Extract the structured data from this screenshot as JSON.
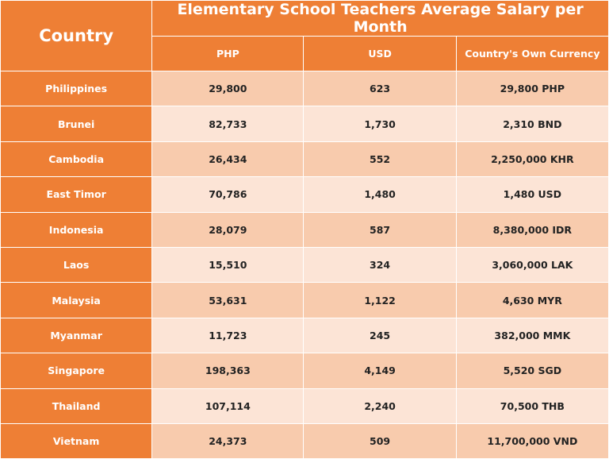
{
  "header": {
    "country_label": "Country",
    "title": "Elementary School Teachers Average Salary per Month",
    "columns": [
      "PHP",
      "USD",
      "Country's Own Currency"
    ]
  },
  "rows": [
    {
      "country": "Philippines",
      "php": "29,800",
      "usd": "623",
      "own": "29,800  PHP"
    },
    {
      "country": "Brunei",
      "php": "82,733",
      "usd": "1,730",
      "own": "2,310  BND"
    },
    {
      "country": "Cambodia",
      "php": "26,434",
      "usd": "552",
      "own": "2,250,000  KHR"
    },
    {
      "country": "East Timor",
      "php": "70,786",
      "usd": "1,480",
      "own": "1,480  USD"
    },
    {
      "country": "Indonesia",
      "php": "28,079",
      "usd": "587",
      "own": "8,380,000 IDR"
    },
    {
      "country": "Laos",
      "php": "15,510",
      "usd": "324",
      "own": "3,060,000  LAK"
    },
    {
      "country": "Malaysia",
      "php": "53,631",
      "usd": "1,122",
      "own": "4,630  MYR"
    },
    {
      "country": "Myanmar",
      "php": "11,723",
      "usd": "245",
      "own": "382,000 MMK"
    },
    {
      "country": "Singapore",
      "php": "198,363",
      "usd": "4,149",
      "own": "5,520  SGD"
    },
    {
      "country": "Thailand",
      "php": "107,114",
      "usd": "2,240",
      "own": "70,500  THB"
    },
    {
      "country": "Vietnam",
      "php": "24,373",
      "usd": "509",
      "own": "11,700,000 VND"
    }
  ],
  "colors": {
    "header_orange": "#ee7f35",
    "row_dark": "#f8cbad",
    "row_light": "#fce4d6"
  }
}
